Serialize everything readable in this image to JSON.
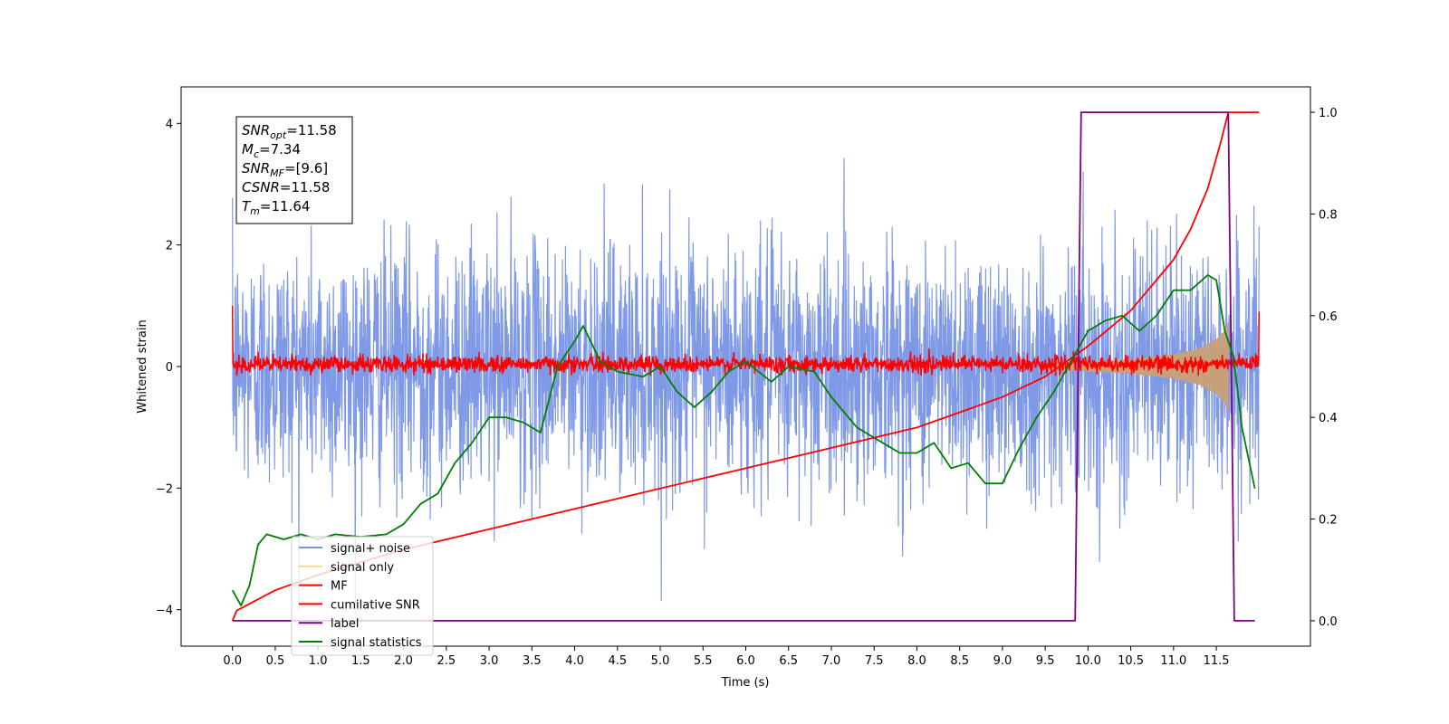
{
  "chart_data": {
    "type": "line",
    "xlabel": "Time (s)",
    "ylabel_left": "Whitened strain",
    "ylabel_right": "",
    "xlim": [
      -0.6,
      12.6
    ],
    "ylim_left": [
      -4.6,
      4.6
    ],
    "ylim_right": [
      -0.05,
      1.05
    ],
    "x_ticks": [
      0.0,
      0.5,
      1.0,
      1.5,
      2.0,
      2.5,
      3.0,
      3.5,
      4.0,
      4.5,
      5.0,
      5.5,
      6.0,
      6.5,
      7.0,
      7.5,
      8.0,
      8.5,
      9.0,
      9.5,
      10.0,
      10.5,
      11.0,
      11.5
    ],
    "x_tick_labels": [
      "0.0",
      "0.5",
      "1.0",
      "1.5",
      "2.0",
      "2.5",
      "3.0",
      "3.5",
      "4.0",
      "4.5",
      "5.0",
      "5.5",
      "6.0",
      "6.5",
      "7.0",
      "7.5",
      "8.0",
      "8.5",
      "9.0",
      "9.5",
      "10.0",
      "10.5",
      "11.0",
      "11.5"
    ],
    "y_ticks_left": [
      -4,
      -2,
      0,
      2,
      4
    ],
    "y_tick_labels_left": [
      "−4",
      "−2",
      "0",
      "2",
      "4"
    ],
    "y_ticks_right": [
      0.0,
      0.2,
      0.4,
      0.6,
      0.8,
      1.0
    ],
    "y_tick_labels_right": [
      "0.0",
      "0.2",
      "0.4",
      "0.6",
      "0.8",
      "1.0"
    ],
    "grid": false,
    "legend_position": "lower-left",
    "annotation_box": {
      "position": "upper-left",
      "lines": [
        {
          "base": "SNR",
          "sub": "opt",
          "value": "=11.58"
        },
        {
          "base": "M",
          "sub": "c",
          "value": "=7.34"
        },
        {
          "base": "SNR",
          "sub": "MF",
          "value": "=[9.6]"
        },
        {
          "base": "CSNR",
          "sub": "",
          "value": "=11.58"
        },
        {
          "base": "T",
          "sub": "m",
          "value": "=11.64"
        }
      ]
    },
    "series": [
      {
        "name": "signal+ noise",
        "axis": "left",
        "color": "#7893e6",
        "description_values": {
          "t_start": 0.0,
          "t_end": 12.0,
          "mean": 0.0,
          "typical_range": [
            -2.3,
            2.3
          ],
          "max": 3.8,
          "min": -4.1
        }
      },
      {
        "name": "signal only",
        "axis": "left",
        "color": "#c8a07a",
        "envelope": {
          "t": [
            9.5,
            10.0,
            10.5,
            11.0,
            11.3,
            11.5,
            11.6,
            11.64
          ],
          "amp": [
            0.05,
            0.08,
            0.12,
            0.2,
            0.3,
            0.45,
            0.6,
            0.75
          ]
        }
      },
      {
        "name": "MF",
        "axis": "left",
        "color": "#ff0000",
        "description_values": {
          "t_start": 0.0,
          "t_end": 12.0,
          "start_value": 1.0,
          "typical_range": [
            -0.15,
            0.3
          ],
          "end_value": 0.9
        }
      },
      {
        "name": "cumilative SNR",
        "axis": "right",
        "color": "#ff0000",
        "x": [
          0.0,
          0.05,
          0.5,
          1.0,
          2.0,
          3.0,
          4.0,
          5.0,
          6.0,
          7.0,
          8.0,
          8.5,
          9.0,
          9.5,
          10.0,
          10.5,
          10.8,
          11.0,
          11.2,
          11.4,
          11.55,
          11.64,
          12.0
        ],
        "y": [
          0.0,
          0.02,
          0.06,
          0.09,
          0.14,
          0.18,
          0.22,
          0.26,
          0.3,
          0.34,
          0.38,
          0.41,
          0.44,
          0.48,
          0.54,
          0.61,
          0.67,
          0.71,
          0.77,
          0.85,
          0.94,
          1.0,
          1.0
        ]
      },
      {
        "name": "label",
        "axis": "right",
        "color": "#800080",
        "x": [
          0.0,
          9.85,
          9.92,
          11.64,
          11.71,
          11.95
        ],
        "y": [
          0.0,
          0.0,
          1.0,
          1.0,
          0.0,
          0.0
        ]
      },
      {
        "name": "signal statistics",
        "axis": "right",
        "color": "#008000",
        "x": [
          0.0,
          0.1,
          0.2,
          0.3,
          0.4,
          0.6,
          0.8,
          1.0,
          1.2,
          1.5,
          1.8,
          2.0,
          2.2,
          2.4,
          2.6,
          2.8,
          3.0,
          3.2,
          3.4,
          3.6,
          3.8,
          4.0,
          4.1,
          4.3,
          4.5,
          4.8,
          5.0,
          5.2,
          5.4,
          5.6,
          5.8,
          6.0,
          6.3,
          6.5,
          6.8,
          7.0,
          7.3,
          7.6,
          7.8,
          8.0,
          8.2,
          8.4,
          8.6,
          8.8,
          9.0,
          9.2,
          9.4,
          9.6,
          9.8,
          10.0,
          10.2,
          10.4,
          10.6,
          10.8,
          11.0,
          11.2,
          11.4,
          11.5,
          11.6,
          11.7,
          11.8,
          11.95
        ],
        "y": [
          0.06,
          0.03,
          0.07,
          0.15,
          0.17,
          0.16,
          0.17,
          0.16,
          0.17,
          0.165,
          0.17,
          0.19,
          0.23,
          0.25,
          0.31,
          0.35,
          0.4,
          0.4,
          0.39,
          0.37,
          0.5,
          0.55,
          0.58,
          0.51,
          0.49,
          0.48,
          0.5,
          0.45,
          0.42,
          0.45,
          0.49,
          0.51,
          0.47,
          0.5,
          0.49,
          0.44,
          0.38,
          0.35,
          0.33,
          0.33,
          0.35,
          0.3,
          0.31,
          0.27,
          0.27,
          0.34,
          0.4,
          0.45,
          0.51,
          0.57,
          0.59,
          0.6,
          0.57,
          0.6,
          0.65,
          0.65,
          0.68,
          0.67,
          0.57,
          0.52,
          0.38,
          0.26
        ]
      }
    ]
  }
}
